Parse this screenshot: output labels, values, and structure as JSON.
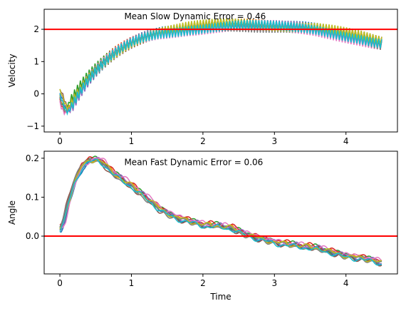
{
  "chart_data": [
    {
      "type": "line",
      "title": "",
      "xlabel": "",
      "ylabel": "Velocity",
      "xlim": [
        -0.22,
        4.72
      ],
      "ylim": [
        -1.18,
        2.62
      ],
      "xticks": [
        0,
        1,
        2,
        3,
        4
      ],
      "yticks": [
        -1,
        0,
        1,
        2
      ],
      "xtick_labels": [
        "0",
        "1",
        "2",
        "3",
        "4"
      ],
      "ytick_labels": [
        "−1",
        "0",
        "1",
        "2"
      ],
      "grid": false,
      "annotation": {
        "text": "Mean Slow Dynamic Error = 0.46",
        "x": 0.9,
        "y": 2.4
      },
      "reference_line": {
        "y": 2.0,
        "color": "#ff0000"
      },
      "n_traces": 10,
      "trace_colors": [
        "#1f77b4",
        "#ff7f0e",
        "#2ca02c",
        "#d62728",
        "#9467bd",
        "#8c564b",
        "#e377c2",
        "#7f7f7f",
        "#bcbd22",
        "#17becf"
      ],
      "x": [
        0,
        0.05,
        0.1,
        0.15,
        0.2,
        0.3,
        0.4,
        0.5,
        0.6,
        0.7,
        0.8,
        0.9,
        1.0,
        1.1,
        1.2,
        1.4,
        1.6,
        1.8,
        2.0,
        2.2,
        2.4,
        2.6,
        2.8,
        3.0,
        3.2,
        3.4,
        3.6,
        3.8,
        4.0,
        4.2,
        4.4,
        4.5
      ],
      "mean_trace": [
        0.0,
        -0.35,
        -0.55,
        -0.4,
        -0.2,
        0.15,
        0.45,
        0.7,
        0.92,
        1.12,
        1.3,
        1.45,
        1.58,
        1.68,
        1.76,
        1.88,
        1.95,
        2.02,
        2.06,
        2.1,
        2.12,
        2.12,
        2.1,
        2.08,
        2.06,
        2.04,
        2.0,
        1.92,
        1.82,
        1.72,
        1.6,
        1.55
      ]
    },
    {
      "type": "line",
      "title": "",
      "xlabel": "Time",
      "ylabel": "Angle",
      "xlim": [
        -0.22,
        4.72
      ],
      "ylim": [
        -0.097,
        0.218
      ],
      "xticks": [
        0,
        1,
        2,
        3,
        4
      ],
      "yticks": [
        0.0,
        0.1,
        0.2
      ],
      "xtick_labels": [
        "0",
        "1",
        "2",
        "3",
        "4"
      ],
      "ytick_labels": [
        "0.0",
        "0.1",
        "0.2"
      ],
      "grid": false,
      "annotation": {
        "text": "Mean Fast Dynamic Error = 0.06",
        "x": 0.9,
        "y": 0.19
      },
      "reference_line": {
        "y": 0.0,
        "color": "#ff0000"
      },
      "n_traces": 10,
      "trace_colors": [
        "#1f77b4",
        "#ff7f0e",
        "#2ca02c",
        "#d62728",
        "#9467bd",
        "#8c564b",
        "#e377c2",
        "#7f7f7f",
        "#bcbd22",
        "#17becf"
      ],
      "x": [
        0,
        0.05,
        0.1,
        0.2,
        0.3,
        0.4,
        0.5,
        0.6,
        0.7,
        0.8,
        1.0,
        1.2,
        1.4,
        1.6,
        1.8,
        2.0,
        2.2,
        2.4,
        2.6,
        2.8,
        3.0,
        3.2,
        3.4,
        3.6,
        3.8,
        4.0,
        4.2,
        4.4,
        4.5
      ],
      "mean_trace": [
        0.02,
        0.04,
        0.08,
        0.14,
        0.18,
        0.195,
        0.198,
        0.19,
        0.17,
        0.155,
        0.13,
        0.1,
        0.07,
        0.05,
        0.04,
        0.03,
        0.028,
        0.022,
        0.005,
        -0.005,
        -0.015,
        -0.02,
        -0.025,
        -0.03,
        -0.04,
        -0.05,
        -0.055,
        -0.062,
        -0.068
      ]
    }
  ]
}
